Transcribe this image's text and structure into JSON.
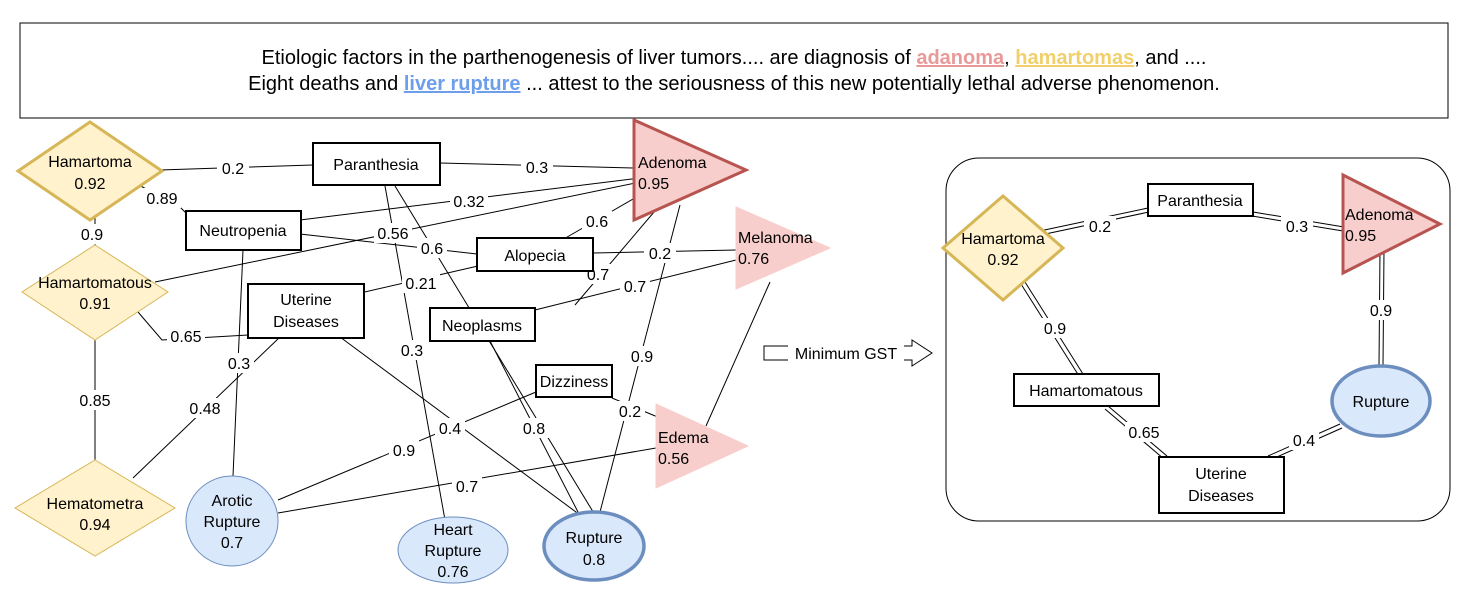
{
  "sentence": {
    "line1_a": "Etiologic factors in the parthenogenesis of liver tumors.... are diagnosis of ",
    "line1_h1": "adanoma",
    "line1_b": ", ",
    "line1_h2": "hamartomas",
    "line1_c": ", and ....",
    "line2_a": "Eight deaths and ",
    "line2_h1": "liver rupture",
    "line2_b": " ... attest to the seriousness of this new potentially lethal adverse phenomenon."
  },
  "colors": {
    "diamond_fill": "#fff2cc",
    "diamond_stroke": "#d6b656",
    "triangle_fill": "#f8cecc",
    "triangle_stroke": "#b85450",
    "circle_fill": "#dae8fc",
    "circle_stroke": "#6c8ebf"
  },
  "left_graph": {
    "nodes": [
      {
        "id": "hamartoma",
        "label": [
          "Hamartoma",
          "0.92"
        ]
      },
      {
        "id": "hamartomatous",
        "label": [
          "Hamartomatous",
          "0.91"
        ]
      },
      {
        "id": "hematometra",
        "label": [
          "Hematometra",
          "0.94"
        ]
      },
      {
        "id": "paranthesia",
        "label": [
          "Paranthesia"
        ]
      },
      {
        "id": "neutropenia",
        "label": [
          "Neutropenia"
        ]
      },
      {
        "id": "alopecia",
        "label": [
          "Alopecia"
        ]
      },
      {
        "id": "uterine",
        "label": [
          "Uterine",
          "Diseases"
        ]
      },
      {
        "id": "neoplasms",
        "label": [
          "Neoplasms"
        ]
      },
      {
        "id": "dizziness",
        "label": [
          "Dizziness"
        ]
      },
      {
        "id": "adenoma",
        "label": [
          "Adenoma",
          "0.95"
        ]
      },
      {
        "id": "melanoma",
        "label": [
          "Melanoma",
          "0.76"
        ]
      },
      {
        "id": "edema",
        "label": [
          "Edema",
          "0.56"
        ]
      },
      {
        "id": "arotic",
        "label": [
          "Arotic",
          "Rupture",
          "0.7"
        ]
      },
      {
        "id": "heart",
        "label": [
          "Heart",
          "Rupture",
          "0.76"
        ]
      },
      {
        "id": "rupture",
        "label": [
          "Rupture",
          "0.8"
        ]
      }
    ],
    "edge_labels": [
      "0.2",
      "0.3",
      "0.89",
      "0.32",
      "0.9",
      "0.56",
      "0.6",
      "0.6",
      "0.2",
      "0.21",
      "0.7",
      "0.7",
      "0.65",
      "0.3",
      "0.3",
      "0.85",
      "0.48",
      "0.9",
      "0.9",
      "0.4",
      "0.8",
      "0.2",
      "0.7"
    ]
  },
  "arrow": {
    "label": "Minimum GST"
  },
  "right_graph": {
    "nodes": [
      {
        "id": "hamartoma",
        "label": [
          "Hamartoma",
          "0.92"
        ]
      },
      {
        "id": "paranthesia",
        "label": [
          "Paranthesia"
        ]
      },
      {
        "id": "adenoma",
        "label": [
          "Adenoma",
          "0.95"
        ]
      },
      {
        "id": "hamartomatous",
        "label": [
          "Hamartomatous"
        ]
      },
      {
        "id": "rupture",
        "label": [
          "Rupture"
        ]
      },
      {
        "id": "uterine",
        "label": [
          "Uterine",
          "Diseases"
        ]
      }
    ],
    "edge_labels": [
      "0.2",
      "0.3",
      "0.9",
      "0.9",
      "0.65",
      "0.4"
    ]
  }
}
